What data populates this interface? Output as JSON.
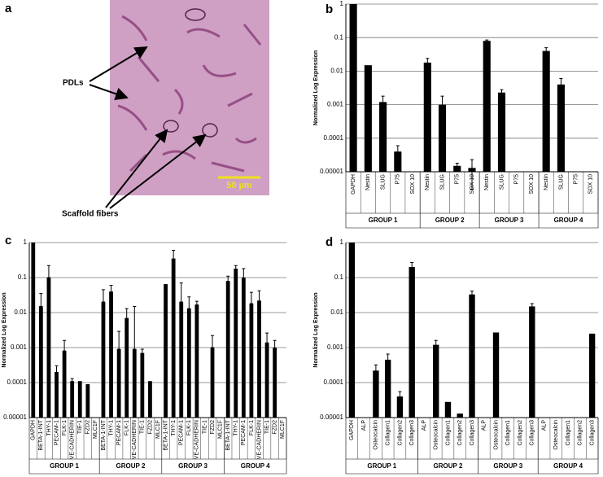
{
  "image_panel": {
    "panel_label": "a",
    "annotations": [
      "PDLs",
      "Scaffold fibers"
    ],
    "scale_bar": "50 µm"
  },
  "chart_data": [
    {
      "type": "bar",
      "panel_label": "b",
      "y_label": "Normalized Log Expression",
      "log_scale": true,
      "grid": true,
      "color": "#000000",
      "ylim": [
        1e-05,
        1
      ],
      "yticks": [
        1,
        0.1,
        0.01,
        0.001,
        0.0001,
        1e-05
      ],
      "groups": [
        {
          "name": "GROUP 1",
          "categories": [
            "GAPDH",
            "Nestin",
            "SLUG",
            "P75",
            "SOX 10"
          ],
          "values": [
            1,
            0.015,
            0.0012,
            4e-05,
            null
          ],
          "errors": [
            null,
            null,
            0.0006,
            2e-05,
            null
          ]
        },
        {
          "name": "GROUP 2",
          "categories": [
            "Nestin",
            "SLUG",
            "P75",
            "SOX 10"
          ],
          "values": [
            0.018,
            0.001,
            1.5e-05,
            1.3e-05
          ],
          "errors": [
            0.006,
            0.0008,
            3e-06,
            1e-05
          ]
        },
        {
          "name": "GROUP 3",
          "categories": [
            "Nestin",
            "SLUG",
            "P75",
            "SOX 10"
          ],
          "values": [
            0.08,
            0.0023,
            null,
            null
          ],
          "errors": [
            0.005,
            0.0005,
            null,
            null
          ]
        },
        {
          "name": "GROUP 4",
          "categories": [
            "Nestin",
            "SLUG",
            "P75",
            "SOX 10"
          ],
          "values": [
            0.04,
            0.004,
            null,
            null
          ],
          "errors": [
            0.01,
            0.002,
            null,
            null
          ]
        }
      ]
    },
    {
      "type": "bar",
      "panel_label": "c",
      "y_label": "Normalized Log Expression",
      "log_scale": true,
      "grid": true,
      "color": "#000000",
      "ylim": [
        1e-05,
        1
      ],
      "yticks": [
        1,
        0.1,
        0.01,
        0.001,
        0.0001,
        1e-05
      ],
      "groups": [
        {
          "name": "GROUP 1",
          "categories": [
            "GAPDH",
            "BETA-1-INT",
            "THY-1",
            "PECAM-1",
            "FLK-1",
            "VE-CADHERIN",
            "TIE-1",
            "FZD2",
            "MLC1F"
          ],
          "values": [
            1,
            0.015,
            0.1,
            0.0002,
            0.0008,
            0.00011,
            0.00011,
            9e-05,
            null
          ],
          "errors": [
            null,
            0.02,
            0.12,
            0.0001,
            0.0008,
            2e-05,
            null,
            null,
            null
          ]
        },
        {
          "name": "GROUP 2",
          "categories": [
            "BETA-1-INT",
            "THY-1",
            "PECAM-1",
            "FLK-1",
            "VE-CADHERIN",
            "TIE-1",
            "FZD2",
            "MLC1F"
          ],
          "values": [
            0.02,
            0.04,
            0.0009,
            0.007,
            0.0009,
            0.0007,
            0.00011,
            null
          ],
          "errors": [
            0.025,
            0.02,
            0.002,
            0.006,
            0.014,
            0.0002,
            null,
            null
          ]
        },
        {
          "name": "GROUP 3",
          "categories": [
            "BETA-1-INT",
            "THY-1",
            "PECAM-1",
            "FLK-1",
            "VE-CADHERIN",
            "TIE-1",
            "FZD2",
            "MLC1F"
          ],
          "values": [
            0.065,
            0.35,
            0.02,
            0.013,
            0.017,
            null,
            0.001,
            null
          ],
          "errors": [
            null,
            0.25,
            0.05,
            0.015,
            0.004,
            null,
            0.0012,
            null
          ]
        },
        {
          "name": "GROUP 4",
          "categories": [
            "BETA-1-INT",
            "THY-1",
            "PECAM-1",
            "FLK-1",
            "VE-CADHERIN",
            "TIE-1",
            "FZD2",
            "MLC1F"
          ],
          "values": [
            0.08,
            0.18,
            0.1,
            0.018,
            0.022,
            0.0014,
            0.001,
            null
          ],
          "errors": [
            0.03,
            0.04,
            0.08,
            0.02,
            0.02,
            0.0012,
            0.0006,
            null
          ]
        }
      ]
    },
    {
      "type": "bar",
      "panel_label": "d",
      "y_label": "Normalized Log Expression",
      "log_scale": true,
      "grid": true,
      "color": "#000000",
      "ylim": [
        1e-05,
        1
      ],
      "yticks": [
        1,
        0.1,
        0.01,
        0.001,
        0.0001,
        1e-05
      ],
      "groups": [
        {
          "name": "GROUP 1",
          "categories": [
            "GAPDH",
            "ALP",
            "Osteocalcin",
            "Collagen1",
            "Collagen2",
            "Collagen3"
          ],
          "values": [
            1,
            null,
            0.00022,
            0.00045,
            4e-05,
            0.2
          ],
          "errors": [
            null,
            null,
            0.0001,
            0.0002,
            1.5e-05,
            0.07
          ]
        },
        {
          "name": "GROUP 2",
          "categories": [
            "ALP",
            "Osteocalcin",
            "Collagen1",
            "Collagen2",
            "Collagen3"
          ],
          "values": [
            null,
            0.0012,
            2.8e-05,
            1.3e-05,
            0.033
          ],
          "errors": [
            null,
            0.0004,
            null,
            null,
            0.008
          ]
        },
        {
          "name": "GROUP 3",
          "categories": [
            "ALP",
            "Osteocalcin",
            "Collagen1",
            "Collagen2",
            "Collagen3"
          ],
          "values": [
            null,
            0.0027,
            null,
            null,
            0.015
          ],
          "errors": [
            null,
            null,
            null,
            null,
            0.003
          ]
        },
        {
          "name": "GROUP 4",
          "categories": [
            "ALP",
            "Osteocalcin",
            "Collagen1",
            "Collagen2",
            "Collagen3"
          ],
          "values": [
            null,
            null,
            null,
            null,
            0.0025
          ],
          "errors": [
            null,
            null,
            null,
            null,
            null
          ]
        }
      ]
    }
  ]
}
